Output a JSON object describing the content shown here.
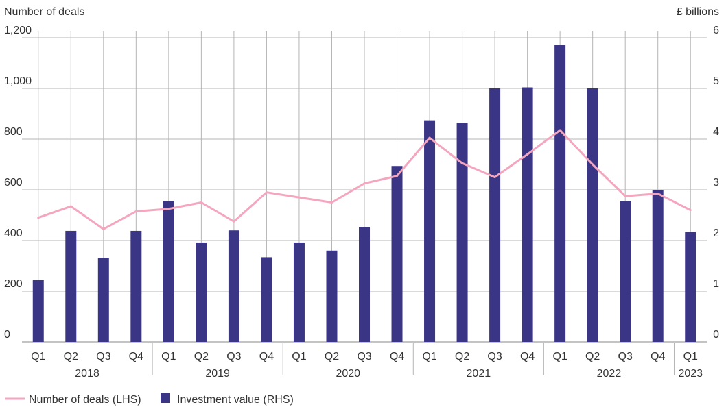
{
  "chart_data": {
    "type": "bar+line",
    "title": "",
    "y_left_label": "Number of deals",
    "y_right_label": "£ billions",
    "y_left_ticks": [
      "0",
      "200",
      "400",
      "600",
      "800",
      "1,000",
      "1,200"
    ],
    "y_right_ticks": [
      "0",
      "1",
      "2",
      "3",
      "4",
      "5",
      "6"
    ],
    "ylim_left": [
      0,
      1200
    ],
    "ylim_right": [
      0,
      6
    ],
    "grid": true,
    "legend_position": "bottom-left",
    "categories": [
      "Q1",
      "Q2",
      "Q3",
      "Q4",
      "Q1",
      "Q2",
      "Q3",
      "Q4",
      "Q1",
      "Q2",
      "Q3",
      "Q4",
      "Q1",
      "Q2",
      "Q3",
      "Q4",
      "Q1",
      "Q2",
      "Q3",
      "Q4",
      "Q1"
    ],
    "years": [
      {
        "label": "2018",
        "count": 4
      },
      {
        "label": "2019",
        "count": 4
      },
      {
        "label": "2020",
        "count": 4
      },
      {
        "label": "2021",
        "count": 4
      },
      {
        "label": "2022",
        "count": 4
      },
      {
        "label": "2023",
        "count": 1
      }
    ],
    "series": [
      {
        "name": "Investment value (RHS)",
        "type": "bar",
        "axis": "right",
        "color": "#3b3585",
        "values": [
          1.22,
          2.19,
          1.66,
          2.19,
          2.78,
          1.96,
          2.2,
          1.67,
          1.96,
          1.8,
          2.27,
          3.47,
          4.37,
          4.32,
          5.0,
          5.02,
          5.86,
          5.0,
          2.78,
          3.0,
          2.17
        ]
      },
      {
        "name": "Number of deals (LHS)",
        "type": "line",
        "axis": "left",
        "color": "#f4a6bf",
        "values": [
          490,
          535,
          445,
          515,
          525,
          550,
          475,
          590,
          570,
          550,
          625,
          655,
          805,
          705,
          650,
          740,
          835,
          700,
          575,
          585,
          520
        ]
      }
    ]
  }
}
